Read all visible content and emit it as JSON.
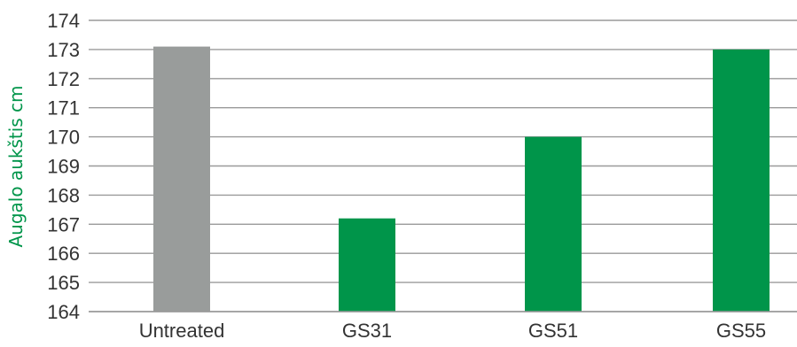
{
  "chart_data": {
    "type": "bar",
    "categories": [
      "Untreated",
      "GS31",
      "GS51",
      "GS55"
    ],
    "values": [
      173.1,
      167.2,
      170.0,
      173.0
    ],
    "bar_colors": [
      "#999c9b",
      "#00954a",
      "#00954a",
      "#00954a"
    ],
    "title": "",
    "xlabel": "",
    "ylabel": "Augalo aukštis cm",
    "ylim": [
      164,
      174
    ],
    "yticks": [
      164,
      165,
      166,
      167,
      168,
      169,
      170,
      171,
      172,
      173,
      174
    ],
    "grid": true,
    "colors": {
      "grid": "#9a9a9a",
      "tick_text": "#333333",
      "ylabel": "#00954a"
    }
  }
}
